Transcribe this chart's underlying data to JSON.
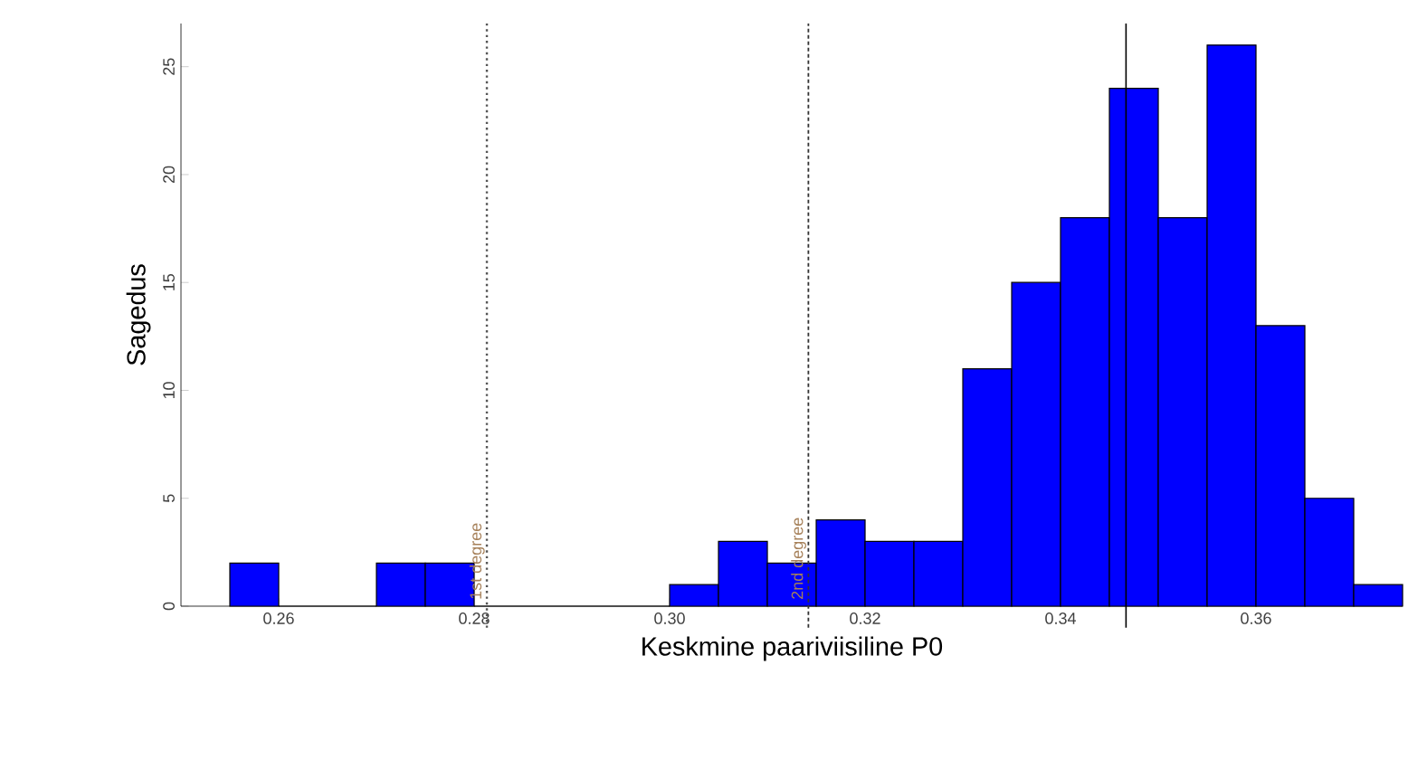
{
  "chart_data": {
    "type": "histogram",
    "xlabel": "Keskmine paariviisiline P0",
    "ylabel": "Sagedus",
    "bins": [
      0.255,
      0.26,
      0.265,
      0.27,
      0.275,
      0.28,
      0.285,
      0.29,
      0.295,
      0.3,
      0.305,
      0.31,
      0.315,
      0.32,
      0.325,
      0.33,
      0.335,
      0.34,
      0.345,
      0.35,
      0.355,
      0.36,
      0.365,
      0.37,
      0.375
    ],
    "values": [
      2,
      0,
      0,
      2,
      2,
      0,
      0,
      0,
      0,
      1,
      3,
      2,
      4,
      3,
      3,
      11,
      15,
      18,
      24,
      18,
      26,
      13,
      5,
      1
    ],
    "color": "#0000ff",
    "xlim": [
      0.25,
      0.375
    ],
    "ylim": [
      0,
      27
    ],
    "xticks": [
      0.26,
      0.28,
      {
        "value": 0.3,
        "label": "0.30"
      },
      0.32,
      0.34,
      0.36
    ],
    "yticks": [
      0,
      5,
      10,
      15,
      20,
      25
    ],
    "ref_lines": [
      {
        "axis": "x",
        "value": 0.2813,
        "label": "1st degree",
        "line_style": "dotted",
        "color": "#555555"
      },
      {
        "axis": "x",
        "value": 0.3142,
        "label": "2nd degree",
        "line_style": "dashed",
        "color": "#333333"
      },
      {
        "axis": "x",
        "value": 0.3467,
        "line_style": "solid",
        "color": "#000000"
      }
    ],
    "grid": false
  }
}
